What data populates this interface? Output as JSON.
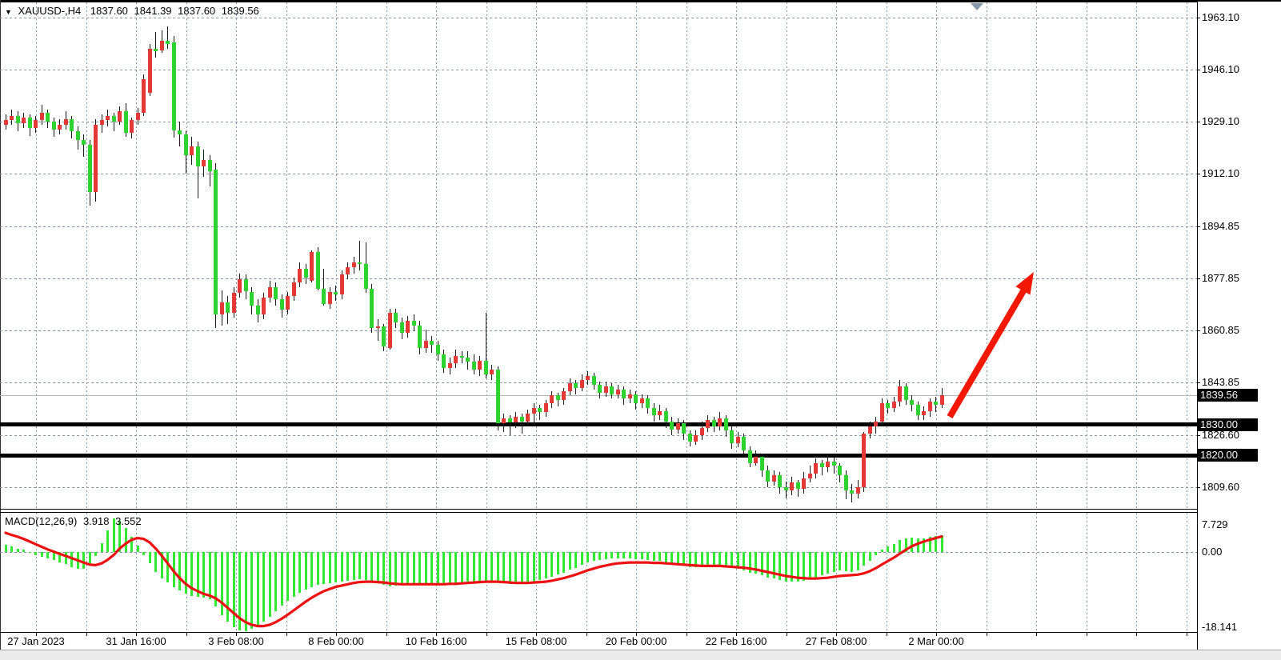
{
  "header": {
    "symbol": "XAUUSD-,H4",
    "open": "1837.60",
    "high": "1841.39",
    "low": "1837.60",
    "close": "1839.56"
  },
  "indicator_label": {
    "name": "MACD(12,26,9)",
    "macd_value": "3.918",
    "signal_value": "3.552"
  },
  "price_axis": {
    "labels": [
      "1963.10",
      "1946.10",
      "1929.10",
      "1912.10",
      "1894.85",
      "1877.85",
      "1860.85",
      "1843.85",
      "1826.60",
      "1809.60"
    ],
    "boxes": [
      {
        "text": "1839.56",
        "price": 1839.56,
        "type": "current-price"
      },
      {
        "text": "1830.00",
        "price": 1830.0,
        "type": "support-line"
      },
      {
        "text": "1820.00",
        "price": 1820.0,
        "type": "support-line"
      }
    ]
  },
  "macd_axis": {
    "max": "7.729",
    "zero": "0.00",
    "min": "-18.141"
  },
  "time_axis": {
    "labels": [
      "27 Jan 2023",
      "31 Jan 16:00",
      "3 Feb 08:00",
      "8 Feb 00:00",
      "10 Feb 16:00",
      "15 Feb 08:00",
      "20 Feb 00:00",
      "22 Feb 16:00",
      "27 Feb 08:00",
      "2 Mar 00:00"
    ]
  },
  "colors": {
    "bull": "#e53935",
    "bear": "#2fd32f",
    "wick": "#1a1a1a",
    "macd_hist": "#33e833",
    "macd_signal": "#ee1111",
    "grid": "#8696ab",
    "current_line": "#b5b5b5",
    "support_line": "#000000",
    "arrow": "#f21804",
    "box_bg": "#000000",
    "box_text": "#ffffff"
  },
  "chart_data": {
    "type": "candlestick",
    "title": "XAUUSD- H4 with MACD(12,26,9)",
    "y_axis_ticks": [
      1963.1,
      1946.1,
      1929.1,
      1912.1,
      1894.85,
      1877.85,
      1860.85,
      1843.85,
      1826.6,
      1809.6
    ],
    "x_axis_ticks": [
      "27 Jan 2023",
      "31 Jan 16:00",
      "3 Feb 08:00",
      "8 Feb 00:00",
      "10 Feb 16:00",
      "15 Feb 08:00",
      "20 Feb 00:00",
      "22 Feb 16:00",
      "27 Feb 08:00",
      "2 Mar 00:00"
    ],
    "current_price": 1839.56,
    "horizontal_lines": [
      {
        "price": 1830.0,
        "thickness": 5
      },
      {
        "price": 1820.0,
        "thickness": 5
      }
    ],
    "trend_arrow": {
      "direction": "up-right",
      "meaning": "bullish projection"
    },
    "candles": [
      [
        1928,
        1931.5,
        1926.5,
        1929.5
      ],
      [
        1929.5,
        1933,
        1928,
        1931
      ],
      [
        1931,
        1932.5,
        1926,
        1928.5
      ],
      [
        1928.5,
        1932,
        1927,
        1930.5
      ],
      [
        1930.5,
        1931.5,
        1924.5,
        1927
      ],
      [
        1927,
        1931,
        1925.5,
        1929.5
      ],
      [
        1929.5,
        1934.5,
        1928,
        1932
      ],
      [
        1932,
        1933,
        1927,
        1929
      ],
      [
        1929,
        1930.5,
        1924,
        1926.5
      ],
      [
        1926.5,
        1930,
        1925,
        1928
      ],
      [
        1928,
        1932.5,
        1926.5,
        1930
      ],
      [
        1930,
        1931,
        1923.5,
        1926
      ],
      [
        1926,
        1927.5,
        1920,
        1923
      ],
      [
        1923,
        1925,
        1917.5,
        1921.5
      ],
      [
        1921.5,
        1923,
        1901.5,
        1906
      ],
      [
        1906,
        1930,
        1903,
        1928
      ],
      [
        1928,
        1931.5,
        1925.5,
        1929.5
      ],
      [
        1929.5,
        1933,
        1927.5,
        1931
      ],
      [
        1931,
        1932,
        1926,
        1929
      ],
      [
        1929,
        1934,
        1928,
        1932.5
      ],
      [
        1932.5,
        1935,
        1924,
        1925.5
      ],
      [
        1925.5,
        1930.5,
        1923.5,
        1929.5
      ],
      [
        1929.5,
        1933.5,
        1928,
        1932
      ],
      [
        1932,
        1944.5,
        1931,
        1943
      ],
      [
        1938.5,
        1954.5,
        1937.5,
        1953
      ],
      [
        1953,
        1958.5,
        1950,
        1952
      ],
      [
        1952.5,
        1959,
        1951.5,
        1955.5
      ],
      [
        1955.5,
        1960.3,
        1953,
        1954.5
      ],
      [
        1955,
        1957,
        1923.9,
        1926.2
      ],
      [
        1926.2,
        1929,
        1921,
        1924.9
      ],
      [
        1924.9,
        1926,
        1912,
        1918
      ],
      [
        1918,
        1924,
        1915,
        1921
      ],
      [
        1921,
        1922.5,
        1904,
        1914.5
      ],
      [
        1914.5,
        1920,
        1911,
        1916.5
      ],
      [
        1916.5,
        1918,
        1908,
        1913
      ],
      [
        1913.5,
        1915.5,
        1861.5,
        1866
      ],
      [
        1866,
        1874,
        1862.5,
        1870
      ],
      [
        1870,
        1872,
        1863,
        1866.5
      ],
      [
        1866.5,
        1875,
        1865,
        1873
      ],
      [
        1873,
        1879.5,
        1871.5,
        1877.5
      ],
      [
        1877.5,
        1879,
        1871,
        1873.5
      ],
      [
        1873.5,
        1875,
        1866,
        1869
      ],
      [
        1869,
        1871,
        1863.5,
        1866
      ],
      [
        1866,
        1873,
        1864.5,
        1871.5
      ],
      [
        1871.5,
        1877,
        1870,
        1875
      ],
      [
        1875,
        1876.5,
        1869,
        1871
      ],
      [
        1871,
        1872.5,
        1865,
        1867.5
      ],
      [
        1867.5,
        1873.5,
        1866,
        1872
      ],
      [
        1872,
        1878,
        1870.5,
        1876.5
      ],
      [
        1876.5,
        1883,
        1875,
        1881
      ],
      [
        1881,
        1882.5,
        1876,
        1878
      ],
      [
        1877,
        1887,
        1876.5,
        1886.5
      ],
      [
        1886.5,
        1888,
        1874,
        1874.5
      ],
      [
        1874.5,
        1881,
        1869,
        1869.5
      ],
      [
        1869.5,
        1875,
        1868,
        1873.5
      ],
      [
        1873.5,
        1875.5,
        1870.5,
        1872.5
      ],
      [
        1872.5,
        1880.5,
        1871,
        1879
      ],
      [
        1879,
        1883,
        1877.5,
        1881.5
      ],
      [
        1881.5,
        1885,
        1879.5,
        1883
      ],
      [
        1883,
        1890,
        1880.5,
        1882.5
      ],
      [
        1882.5,
        1889.5,
        1873,
        1874.5
      ],
      [
        1874.5,
        1876,
        1860,
        1861.5
      ],
      [
        1861.5,
        1864.5,
        1857.5,
        1862
      ],
      [
        1862,
        1863,
        1854,
        1855.5
      ],
      [
        1855,
        1868,
        1854.5,
        1866.5
      ],
      [
        1866.5,
        1868,
        1861.5,
        1863.5
      ],
      [
        1863.5,
        1865,
        1858,
        1860
      ],
      [
        1860,
        1865.5,
        1858.5,
        1864
      ],
      [
        1864,
        1866,
        1860.5,
        1862.5
      ],
      [
        1862.5,
        1864,
        1853,
        1855
      ],
      [
        1855,
        1861,
        1853.5,
        1857.5
      ],
      [
        1857.5,
        1859,
        1853.5,
        1856
      ],
      [
        1856,
        1857.5,
        1851,
        1853
      ],
      [
        1853,
        1854.5,
        1847,
        1848.5
      ],
      [
        1848.5,
        1852,
        1846.5,
        1850
      ],
      [
        1850,
        1854.5,
        1848.5,
        1852.5
      ],
      [
        1852.5,
        1854,
        1850,
        1852
      ],
      [
        1852,
        1854,
        1848,
        1850.5
      ],
      [
        1850.5,
        1853,
        1846.5,
        1848
      ],
      [
        1848,
        1852.5,
        1846,
        1851
      ],
      [
        1851,
        1866.5,
        1845,
        1846.5
      ],
      [
        1846.5,
        1849.5,
        1844.5,
        1848
      ],
      [
        1848,
        1849,
        1828,
        1830.5
      ],
      [
        1830.5,
        1833.5,
        1827.5,
        1832
      ],
      [
        1832,
        1833,
        1826.5,
        1830.8
      ],
      [
        1830.8,
        1834,
        1829,
        1832.5
      ],
      [
        1832.5,
        1833.5,
        1827,
        1831
      ],
      [
        1831,
        1835,
        1829.5,
        1833.5
      ],
      [
        1833.5,
        1837,
        1830,
        1835.5
      ],
      [
        1835.5,
        1836.5,
        1831.5,
        1834
      ],
      [
        1834,
        1838,
        1832.5,
        1837
      ],
      [
        1837,
        1841,
        1835.5,
        1839.5
      ],
      [
        1839.5,
        1840.5,
        1836,
        1838
      ],
      [
        1838,
        1842,
        1836.5,
        1841
      ],
      [
        1841,
        1845,
        1839.5,
        1843.5
      ],
      [
        1843.5,
        1844.5,
        1840,
        1842
      ],
      [
        1842,
        1846.5,
        1841,
        1844.5
      ],
      [
        1844.5,
        1847.5,
        1843,
        1846
      ],
      [
        1846,
        1847,
        1841.5,
        1843
      ],
      [
        1843,
        1844,
        1838.5,
        1840.5
      ],
      [
        1840.5,
        1844,
        1839,
        1842.5
      ],
      [
        1842.5,
        1843.5,
        1838.5,
        1840
      ],
      [
        1840,
        1843,
        1838.5,
        1841.5
      ],
      [
        1841.5,
        1842.5,
        1836.5,
        1838.5
      ],
      [
        1838.5,
        1841.5,
        1837,
        1840
      ],
      [
        1840,
        1841,
        1835,
        1837
      ],
      [
        1837,
        1840,
        1835.5,
        1838.5
      ],
      [
        1838.5,
        1839.5,
        1833.5,
        1835.5
      ],
      [
        1835.5,
        1837,
        1831,
        1833
      ],
      [
        1833,
        1836.5,
        1831.5,
        1834.5
      ],
      [
        1834.5,
        1835.5,
        1829,
        1831
      ],
      [
        1831,
        1832.5,
        1826.5,
        1828.5
      ],
      [
        1828.5,
        1832,
        1827,
        1830.5
      ],
      [
        1830.5,
        1831.5,
        1825,
        1827
      ],
      [
        1827,
        1828,
        1823,
        1824.5
      ],
      [
        1824.5,
        1828,
        1823.5,
        1826.5
      ],
      [
        1826.5,
        1831,
        1825,
        1829
      ],
      [
        1829,
        1833,
        1827.5,
        1831.5
      ],
      [
        1831.5,
        1832.5,
        1827.5,
        1829.5
      ],
      [
        1829.5,
        1834,
        1828,
        1832
      ],
      [
        1832,
        1833,
        1826,
        1828
      ],
      [
        1828,
        1829.5,
        1822,
        1824
      ],
      [
        1824,
        1827.5,
        1822.5,
        1826
      ],
      [
        1826,
        1827,
        1820,
        1821.5
      ],
      [
        1821.5,
        1823,
        1816,
        1817.5
      ],
      [
        1817.5,
        1821.5,
        1816.5,
        1819.5
      ],
      [
        1819.5,
        1820.5,
        1813,
        1815
      ],
      [
        1815,
        1816.5,
        1809.5,
        1811.5
      ],
      [
        1811.5,
        1815,
        1810,
        1813.5
      ],
      [
        1813.5,
        1814.5,
        1807.5,
        1809.5
      ],
      [
        1809.5,
        1811.5,
        1806,
        1808.5
      ],
      [
        1808.5,
        1813,
        1807,
        1811
      ],
      [
        1811,
        1812,
        1806.5,
        1809
      ],
      [
        1809,
        1814.5,
        1807.5,
        1812.5
      ],
      [
        1812.5,
        1816.5,
        1811,
        1814
      ],
      [
        1814,
        1819,
        1812.5,
        1817.5
      ],
      [
        1817.5,
        1818.5,
        1813.5,
        1816
      ],
      [
        1816,
        1820,
        1814.5,
        1818
      ],
      [
        1818,
        1819.5,
        1814,
        1816.5
      ],
      [
        1816.5,
        1817.5,
        1811,
        1813.5
      ],
      [
        1813.5,
        1815,
        1805.5,
        1808.5
      ],
      [
        1808.5,
        1810.5,
        1804.5,
        1807.5
      ],
      [
        1807.5,
        1812,
        1806,
        1809.5
      ],
      [
        1809.5,
        1827.5,
        1808,
        1827
      ],
      [
        1827,
        1831,
        1825.5,
        1829.5
      ],
      [
        1829.5,
        1832.5,
        1827,
        1831
      ],
      [
        1831,
        1838.5,
        1830,
        1837
      ],
      [
        1837,
        1838,
        1833.5,
        1835.5
      ],
      [
        1835.5,
        1839,
        1834,
        1837.5
      ],
      [
        1837.5,
        1844.5,
        1836,
        1842.5
      ],
      [
        1842.5,
        1843.5,
        1836.5,
        1838
      ],
      [
        1838,
        1839.5,
        1834.5,
        1836.5
      ],
      [
        1836.5,
        1837.5,
        1831.5,
        1833
      ],
      [
        1833,
        1836,
        1831.5,
        1834.5
      ],
      [
        1834.5,
        1838.5,
        1832.5,
        1837.5
      ],
      [
        1837.5,
        1839,
        1834,
        1836.5
      ],
      [
        1836.5,
        1842,
        1835.5,
        1839.6
      ]
    ],
    "macd": {
      "params": [
        12,
        26,
        9
      ],
      "last_macd": 3.918,
      "last_signal": 3.552,
      "range": [
        -18.141,
        7.729
      ],
      "histogram": [
        1.6,
        1.2,
        0.8,
        0.5,
        -0.2,
        -0.7,
        -1.1,
        -1.5,
        -1.9,
        -2.3,
        -2.8,
        -3.4,
        -3.8,
        -3.9,
        -3.0,
        -1.0,
        2.0,
        5.0,
        7.7,
        7.2,
        5.5,
        3.5,
        1.5,
        -0.8,
        -2.5,
        -4.5,
        -6.0,
        -7.0,
        -8.0,
        -8.8,
        -9.5,
        -10.0,
        -10.3,
        -10.5,
        -10.8,
        -12.5,
        -14.5,
        -16.0,
        -17.2,
        -17.9,
        -18.1,
        -17.7,
        -17.0,
        -16.0,
        -14.8,
        -13.5,
        -12.3,
        -11.2,
        -10.2,
        -9.3,
        -8.6,
        -8.0,
        -7.6,
        -7.4,
        -7.2,
        -7.0,
        -6.8,
        -6.6,
        -6.4,
        -6.3,
        -6.4,
        -6.8,
        -7.2,
        -7.6,
        -7.8,
        -7.7,
        -7.6,
        -7.4,
        -7.3,
        -7.4,
        -7.4,
        -7.3,
        -7.3,
        -7.4,
        -7.3,
        -7.1,
        -6.9,
        -6.8,
        -6.8,
        -6.7,
        -6.7,
        -6.6,
        -7.0,
        -7.2,
        -7.4,
        -7.4,
        -7.3,
        -7.1,
        -6.8,
        -6.5,
        -6.1,
        -5.6,
        -5.2,
        -4.7,
        -4.1,
        -3.6,
        -3.0,
        -2.4,
        -2.0,
        -1.8,
        -1.6,
        -1.5,
        -1.4,
        -1.5,
        -1.5,
        -1.6,
        -1.6,
        -1.8,
        -2.0,
        -2.1,
        -2.4,
        -2.7,
        -2.8,
        -3.1,
        -3.4,
        -3.5,
        -3.4,
        -3.3,
        -3.3,
        -3.2,
        -3.4,
        -3.7,
        -3.8,
        -4.2,
        -4.7,
        -4.9,
        -5.3,
        -5.8,
        -6.0,
        -6.4,
        -6.7,
        -6.7,
        -6.8,
        -6.6,
        -6.3,
        -5.8,
        -5.4,
        -4.9,
        -4.5,
        -4.3,
        -4.4,
        -4.5,
        -4.3,
        -3.2,
        -2.0,
        -0.8,
        0.5,
        1.2,
        1.9,
        2.8,
        3.2,
        3.3,
        3.1,
        3.1,
        3.4,
        3.7,
        3.918
      ],
      "signal": [
        4.4,
        3.9,
        3.5,
        3.0,
        2.4,
        1.8,
        1.2,
        0.6,
        0.1,
        -0.4,
        -0.9,
        -1.4,
        -1.9,
        -2.4,
        -2.9,
        -3.0,
        -2.6,
        -1.8,
        -0.7,
        0.8,
        1.9,
        2.8,
        3.2,
        3.0,
        2.2,
        0.8,
        -0.8,
        -2.6,
        -4.4,
        -6.0,
        -7.3,
        -8.3,
        -9.0,
        -9.6,
        -10.0,
        -10.6,
        -11.6,
        -12.8,
        -14.0,
        -15.2,
        -16.1,
        -16.7,
        -17.0,
        -17.0,
        -16.7,
        -16.1,
        -15.3,
        -14.4,
        -13.4,
        -12.4,
        -11.4,
        -10.5,
        -9.7,
        -9.0,
        -8.5,
        -8.0,
        -7.7,
        -7.4,
        -7.1,
        -6.9,
        -6.8,
        -6.8,
        -6.9,
        -7.0,
        -7.2,
        -7.3,
        -7.4,
        -7.4,
        -7.4,
        -7.4,
        -7.4,
        -7.4,
        -7.4,
        -7.4,
        -7.3,
        -7.3,
        -7.2,
        -7.1,
        -7.0,
        -6.9,
        -6.8,
        -6.8,
        -6.8,
        -6.9,
        -7.0,
        -7.1,
        -7.1,
        -7.1,
        -7.0,
        -6.9,
        -6.8,
        -6.6,
        -6.3,
        -6.0,
        -5.6,
        -5.2,
        -4.7,
        -4.2,
        -3.8,
        -3.4,
        -3.1,
        -2.8,
        -2.6,
        -2.5,
        -2.4,
        -2.4,
        -2.4,
        -2.4,
        -2.5,
        -2.5,
        -2.6,
        -2.7,
        -2.8,
        -2.9,
        -3.0,
        -3.1,
        -3.2,
        -3.2,
        -3.2,
        -3.2,
        -3.3,
        -3.4,
        -3.5,
        -3.6,
        -3.8,
        -4.0,
        -4.3,
        -4.6,
        -4.9,
        -5.2,
        -5.5,
        -5.7,
        -5.9,
        -6.0,
        -6.1,
        -6.1,
        -6.0,
        -5.9,
        -5.7,
        -5.5,
        -5.4,
        -5.3,
        -5.2,
        -4.9,
        -4.4,
        -3.7,
        -2.9,
        -2.1,
        -1.3,
        -0.4,
        0.5,
        1.3,
        1.9,
        2.4,
        2.8,
        3.2,
        3.552
      ]
    }
  }
}
